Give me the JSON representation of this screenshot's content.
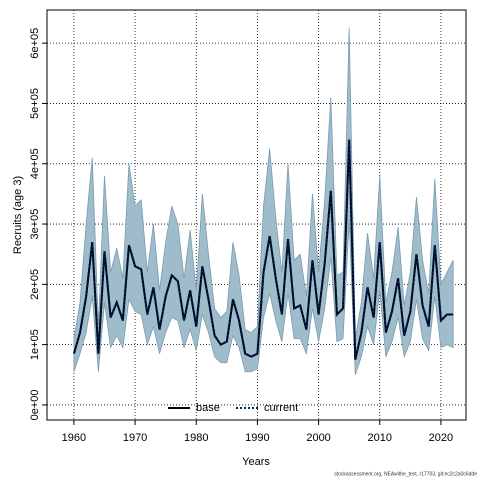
{
  "chart_data": {
    "type": "line",
    "x_label": "Years",
    "y_label": "Recruits (age 3)",
    "footer": "stockassessment.org, NEAwithe_test, r17703, git:ec2c2a0c6dde",
    "x": [
      1960,
      1961,
      1962,
      1963,
      1964,
      1965,
      1966,
      1967,
      1968,
      1969,
      1970,
      1971,
      1972,
      1973,
      1974,
      1975,
      1976,
      1977,
      1978,
      1979,
      1980,
      1981,
      1982,
      1983,
      1984,
      1985,
      1986,
      1987,
      1988,
      1989,
      1990,
      1991,
      1992,
      1993,
      1994,
      1995,
      1996,
      1997,
      1998,
      1999,
      2000,
      2001,
      2002,
      2003,
      2004,
      2005,
      2006,
      2007,
      2008,
      2009,
      2010,
      2011,
      2012,
      2013,
      2014,
      2015,
      2016,
      2017,
      2018,
      2019,
      2020,
      2021,
      2022
    ],
    "series": [
      {
        "name": "base",
        "color": "#000000",
        "dash": "solid",
        "values": [
          85000,
          120000,
          180000,
          270000,
          85000,
          255000,
          145000,
          170000,
          140000,
          265000,
          230000,
          225000,
          150000,
          195000,
          125000,
          180000,
          215000,
          205000,
          140000,
          190000,
          130000,
          230000,
          175000,
          115000,
          100000,
          105000,
          175000,
          140000,
          85000,
          80000,
          85000,
          220000,
          280000,
          210000,
          150000,
          275000,
          160000,
          165000,
          125000,
          240000,
          150000,
          235000,
          355000,
          150000,
          160000,
          440000,
          75000,
          120000,
          195000,
          145000,
          270000,
          120000,
          155000,
          210000,
          115000,
          155000,
          250000,
          165000,
          130000,
          265000,
          140000,
          150000,
          150000
        ]
      },
      {
        "name": "current",
        "color": "#00205b",
        "dash": "dotted",
        "values": [
          85000,
          120000,
          180000,
          270000,
          85000,
          255000,
          145000,
          170000,
          140000,
          265000,
          230000,
          225000,
          150000,
          195000,
          125000,
          180000,
          215000,
          205000,
          140000,
          190000,
          130000,
          230000,
          175000,
          115000,
          100000,
          105000,
          175000,
          140000,
          85000,
          80000,
          85000,
          220000,
          280000,
          210000,
          150000,
          275000,
          160000,
          165000,
          125000,
          240000,
          150000,
          235000,
          355000,
          150000,
          160000,
          440000,
          75000,
          120000,
          195000,
          145000,
          270000,
          120000,
          155000,
          210000,
          115000,
          155000,
          250000,
          165000,
          130000,
          265000,
          140000,
          150000,
          150000
        ]
      }
    ],
    "band": {
      "color": "#9fbccb",
      "edge": "#7a9cb0",
      "upper": [
        110000,
        170000,
        300000,
        410000,
        130000,
        380000,
        220000,
        260000,
        210000,
        400000,
        330000,
        340000,
        220000,
        300000,
        190000,
        270000,
        330000,
        300000,
        210000,
        290000,
        190000,
        350000,
        250000,
        160000,
        145000,
        155000,
        270000,
        215000,
        125000,
        120000,
        130000,
        330000,
        425000,
        310000,
        220000,
        400000,
        240000,
        250000,
        180000,
        350000,
        220000,
        340000,
        510000,
        215000,
        220000,
        625000,
        110000,
        170000,
        285000,
        210000,
        380000,
        170000,
        220000,
        295000,
        165000,
        220000,
        345000,
        240000,
        185000,
        375000,
        200000,
        220000,
        240000
      ],
      "lower": [
        55000,
        85000,
        120000,
        180000,
        55000,
        170000,
        95000,
        115000,
        95000,
        175000,
        155000,
        150000,
        100000,
        130000,
        85000,
        120000,
        145000,
        140000,
        95000,
        125000,
        90000,
        150000,
        120000,
        80000,
        70000,
        70000,
        115000,
        95000,
        55000,
        55000,
        60000,
        145000,
        185000,
        140000,
        105000,
        185000,
        110000,
        110000,
        85000,
        160000,
        105000,
        160000,
        245000,
        105000,
        110000,
        305000,
        50000,
        80000,
        130000,
        100000,
        190000,
        80000,
        105000,
        145000,
        80000,
        105000,
        175000,
        110000,
        90000,
        180000,
        95000,
        100000,
        95000
      ]
    },
    "xlim": [
      1955.6,
      2024.1
    ],
    "ylim": [
      -25000,
      655000
    ],
    "xticks": [
      1960,
      1970,
      1980,
      1990,
      2000,
      2010,
      2020
    ],
    "yticks": [
      {
        "value": 0,
        "label": "0e+00"
      },
      {
        "value": 100000,
        "label": "1e+05"
      },
      {
        "value": 200000,
        "label": "2e+05"
      },
      {
        "value": 300000,
        "label": "3e+05"
      },
      {
        "value": 400000,
        "label": "4e+05"
      },
      {
        "value": 500000,
        "label": "5e+05"
      },
      {
        "value": 600000,
        "label": "6e+05"
      }
    ],
    "grid": true,
    "legend": "bottom"
  }
}
